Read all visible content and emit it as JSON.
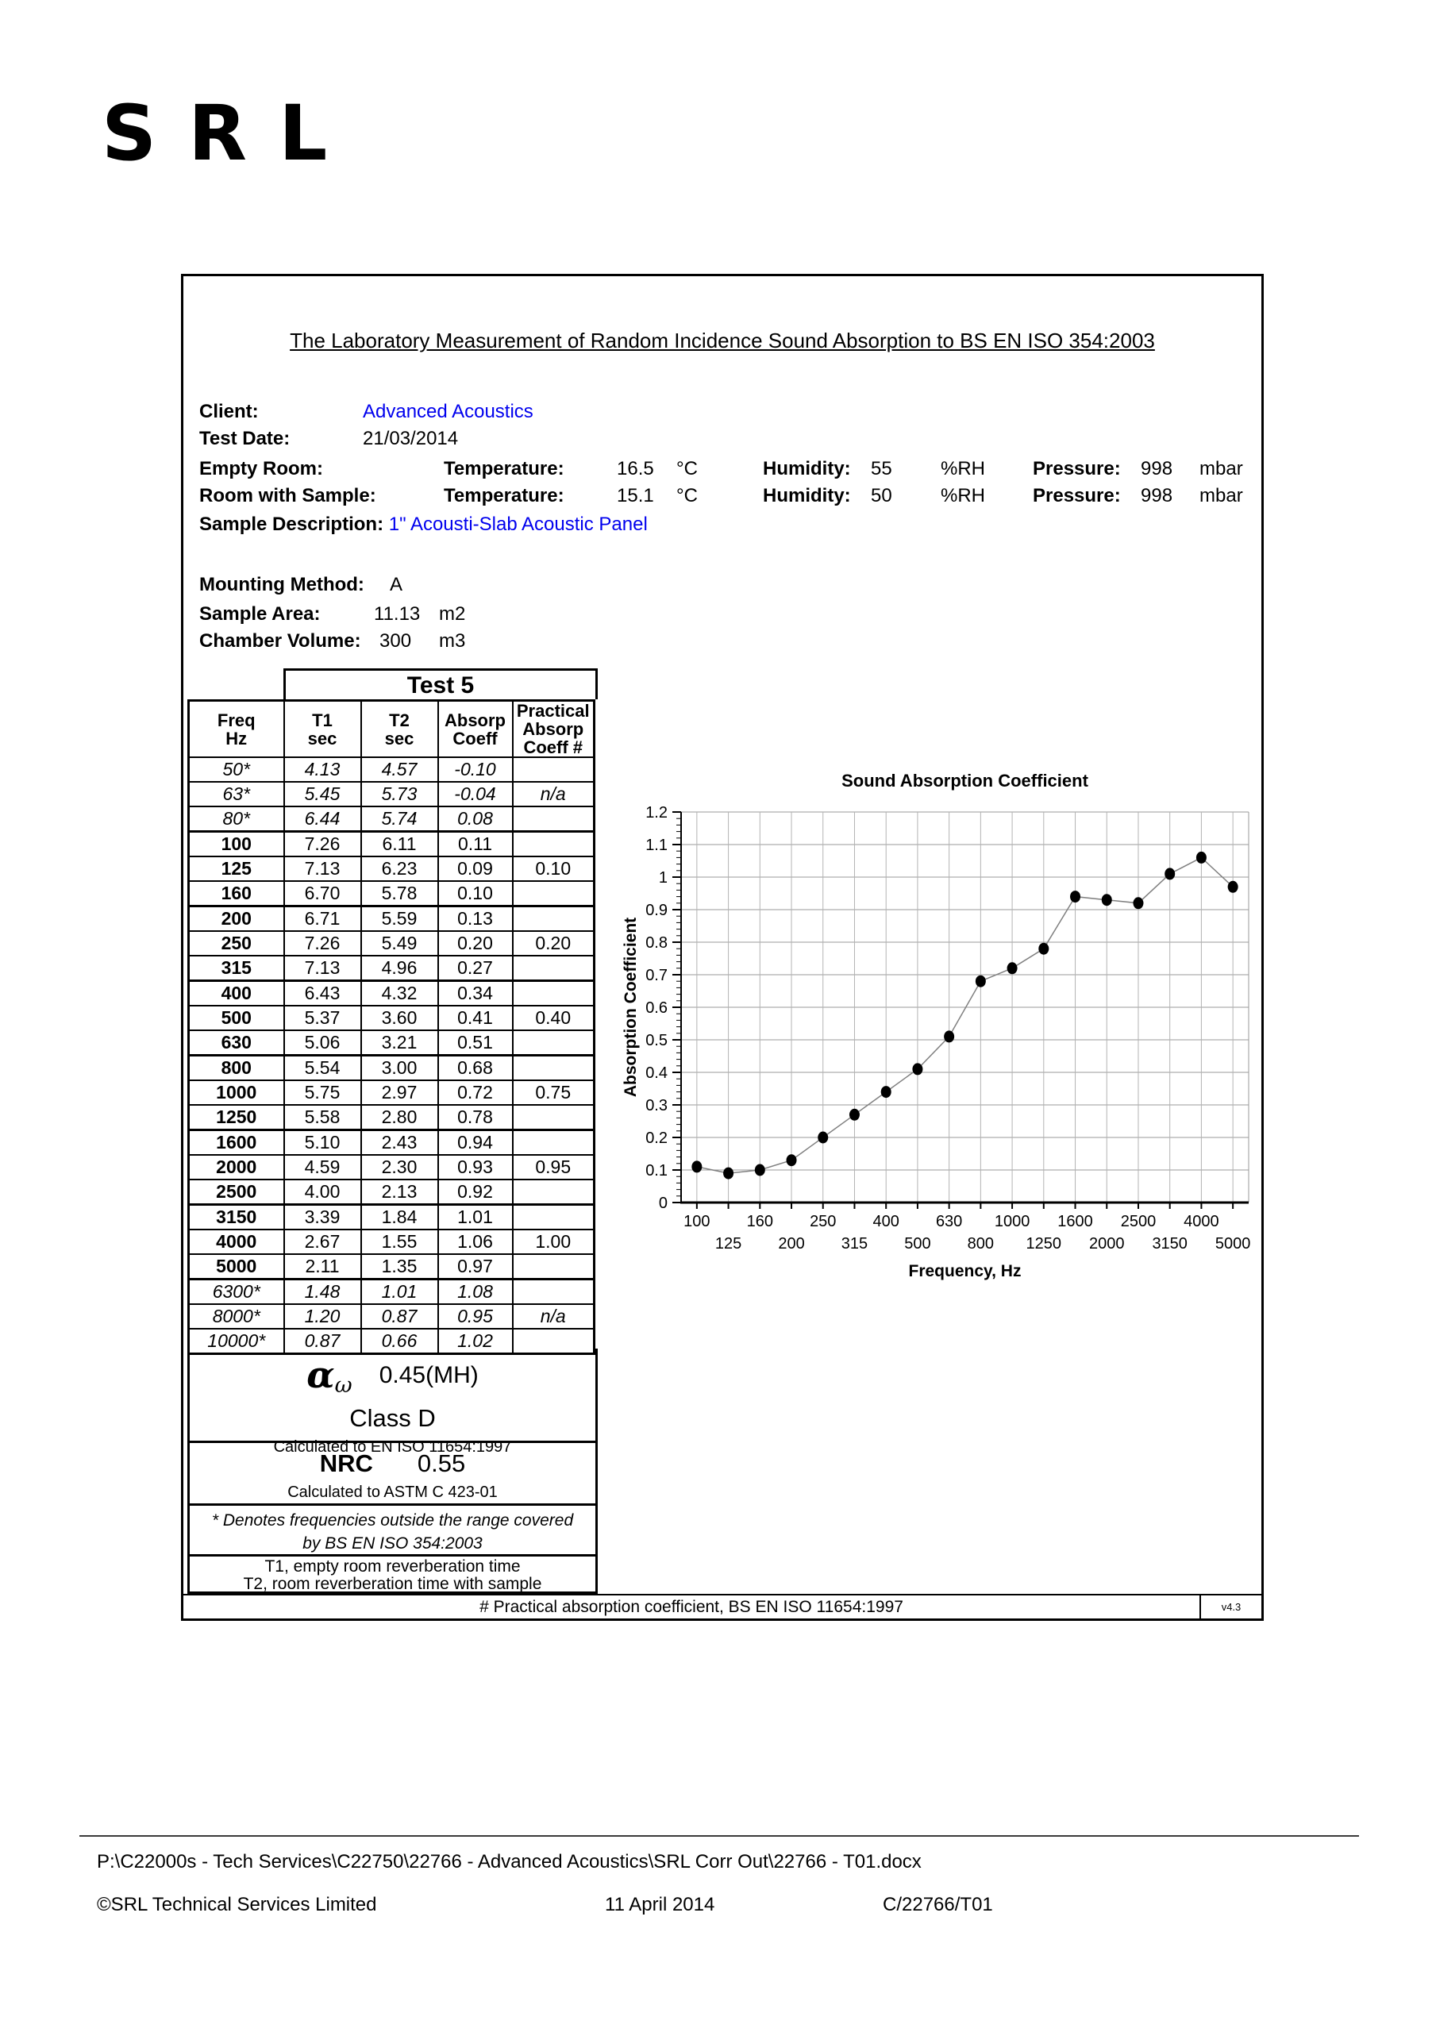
{
  "logo_text": "SRL",
  "document": {
    "title": "The Laboratory Measurement of Random Incidence Sound Absorption to BS EN ISO 354:2003",
    "info": {
      "client_label": "Client:",
      "client": "Advanced Acoustics",
      "test_date_label": "Test Date:",
      "test_date": "21/03/2014",
      "sample_desc_label": "Sample Description:",
      "sample_desc": "1\" Acousti-Slab Acoustic Panel",
      "mounting_label": "Mounting Method:",
      "mounting": "A",
      "area_label": "Sample Area:",
      "area": "11.13",
      "area_unit": "m2",
      "volume_label": "Chamber Volume:",
      "volume": "300",
      "volume_unit": "m3"
    },
    "environment": [
      {
        "label": "Empty Room:",
        "temp_label": "Temperature:",
        "temp": "16.5",
        "temp_unit": "°C",
        "hum_label": "Humidity:",
        "hum": "55",
        "hum_unit": "%RH",
        "press_label": "Pressure:",
        "press": "998",
        "press_unit": "mbar"
      },
      {
        "label": "Room with Sample:",
        "temp_label": "Temperature:",
        "temp": "15.1",
        "temp_unit": "°C",
        "hum_label": "Humidity:",
        "hum": "50",
        "hum_unit": "%RH",
        "press_label": "Pressure:",
        "press": "998",
        "press_unit": "mbar"
      }
    ],
    "test_table": {
      "test_label": "Test 5",
      "headers": {
        "freq_l1": "Freq",
        "freq_l2": "Hz",
        "t1_l1": "T1",
        "t1_l2": "sec",
        "t2_l1": "T2",
        "t2_l2": "sec",
        "coeff_l1": "Absorp",
        "coeff_l2": "Coeff",
        "prac_l1": "Practical",
        "prac_l2": "Absorp",
        "prac_l3": "Coeff #"
      },
      "rows": [
        {
          "freq": "50*",
          "t1": "4.13",
          "t2": "4.57",
          "coeff": "-0.10",
          "practical": "",
          "starred": true
        },
        {
          "freq": "63*",
          "t1": "5.45",
          "t2": "5.73",
          "coeff": "-0.04",
          "practical": "n/a",
          "starred": true
        },
        {
          "freq": "80*",
          "t1": "6.44",
          "t2": "5.74",
          "coeff": "0.08",
          "practical": "",
          "starred": true
        },
        {
          "freq": "100",
          "t1": "7.26",
          "t2": "6.11",
          "coeff": "0.11",
          "practical": "",
          "starred": false
        },
        {
          "freq": "125",
          "t1": "7.13",
          "t2": "6.23",
          "coeff": "0.09",
          "practical": "0.10",
          "starred": false
        },
        {
          "freq": "160",
          "t1": "6.70",
          "t2": "5.78",
          "coeff": "0.10",
          "practical": "",
          "starred": false
        },
        {
          "freq": "200",
          "t1": "6.71",
          "t2": "5.59",
          "coeff": "0.13",
          "practical": "",
          "starred": false
        },
        {
          "freq": "250",
          "t1": "7.26",
          "t2": "5.49",
          "coeff": "0.20",
          "practical": "0.20",
          "starred": false
        },
        {
          "freq": "315",
          "t1": "7.13",
          "t2": "4.96",
          "coeff": "0.27",
          "practical": "",
          "starred": false
        },
        {
          "freq": "400",
          "t1": "6.43",
          "t2": "4.32",
          "coeff": "0.34",
          "practical": "",
          "starred": false
        },
        {
          "freq": "500",
          "t1": "5.37",
          "t2": "3.60",
          "coeff": "0.41",
          "practical": "0.40",
          "starred": false
        },
        {
          "freq": "630",
          "t1": "5.06",
          "t2": "3.21",
          "coeff": "0.51",
          "practical": "",
          "starred": false
        },
        {
          "freq": "800",
          "t1": "5.54",
          "t2": "3.00",
          "coeff": "0.68",
          "practical": "",
          "starred": false
        },
        {
          "freq": "1000",
          "t1": "5.75",
          "t2": "2.97",
          "coeff": "0.72",
          "practical": "0.75",
          "starred": false
        },
        {
          "freq": "1250",
          "t1": "5.58",
          "t2": "2.80",
          "coeff": "0.78",
          "practical": "",
          "starred": false
        },
        {
          "freq": "1600",
          "t1": "5.10",
          "t2": "2.43",
          "coeff": "0.94",
          "practical": "",
          "starred": false
        },
        {
          "freq": "2000",
          "t1": "4.59",
          "t2": "2.30",
          "coeff": "0.93",
          "practical": "0.95",
          "starred": false
        },
        {
          "freq": "2500",
          "t1": "4.00",
          "t2": "2.13",
          "coeff": "0.92",
          "practical": "",
          "starred": false
        },
        {
          "freq": "3150",
          "t1": "3.39",
          "t2": "1.84",
          "coeff": "1.01",
          "practical": "",
          "starred": false
        },
        {
          "freq": "4000",
          "t1": "2.67",
          "t2": "1.55",
          "coeff": "1.06",
          "practical": "1.00",
          "starred": false
        },
        {
          "freq": "5000",
          "t1": "2.11",
          "t2": "1.35",
          "coeff": "0.97",
          "practical": "",
          "starred": false
        },
        {
          "freq": "6300*",
          "t1": "1.48",
          "t2": "1.01",
          "coeff": "1.08",
          "practical": "",
          "starred": true
        },
        {
          "freq": "8000*",
          "t1": "1.20",
          "t2": "0.87",
          "coeff": "0.95",
          "practical": "n/a",
          "starred": true
        },
        {
          "freq": "10000*",
          "t1": "0.87",
          "t2": "0.66",
          "coeff": "1.02",
          "practical": "",
          "starred": true
        }
      ],
      "group_end_rows": [
        2,
        5,
        8,
        11,
        14,
        17,
        20
      ]
    },
    "alpha_w": {
      "symbol": "α",
      "subscript": "ω",
      "value": "0.45(MH)",
      "class_rating": "Class D",
      "note": "Calculated to EN ISO 11654:1997"
    },
    "nrc": {
      "label": "NRC",
      "value": "0.55",
      "note": "Calculated to ASTM C 423-01"
    },
    "notes": {
      "denotes_line1": "* Denotes frequencies outside the range covered",
      "denotes_line2": "by BS EN ISO 354:2003",
      "t1_note": "T1, empty room reverberation time",
      "t2_note": "T2, room reverberation time with sample"
    },
    "strip": {
      "text": "# Practical absorption coefficient, BS EN ISO 11654:1997",
      "version": "v4.3"
    }
  },
  "chart_data": {
    "type": "line",
    "title": "Sound Absorption Coefficient",
    "xlabel": "Frequency, Hz",
    "ylabel": "Absorption Coefficient",
    "ylim": [
      0,
      1.2
    ],
    "ytick_step": 0.1,
    "grid": true,
    "legend": "none",
    "categories": [
      "100",
      "125",
      "160",
      "200",
      "250",
      "315",
      "400",
      "500",
      "630",
      "800",
      "1000",
      "1250",
      "1600",
      "2000",
      "2500",
      "3150",
      "4000",
      "5000"
    ],
    "values": [
      0.11,
      0.09,
      0.1,
      0.13,
      0.2,
      0.27,
      0.34,
      0.41,
      0.51,
      0.68,
      0.72,
      0.78,
      0.94,
      0.93,
      0.92,
      1.01,
      1.06,
      0.97
    ]
  },
  "footer": {
    "path": "P:\\C22000s - Tech Services\\C22750\\22766 - Advanced Acoustics\\SRL Corr Out\\22766 - T01.docx",
    "copyright": "©SRL Technical Services Limited",
    "date": "11 April 2014",
    "reference": "C/22766/T01"
  }
}
